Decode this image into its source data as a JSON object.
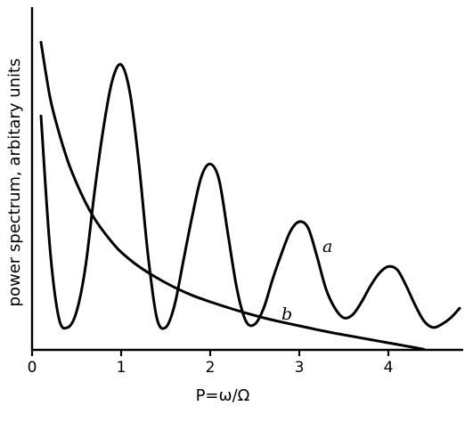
{
  "chart_data": {
    "type": "line",
    "title": "",
    "xlabel": "P=ω/Ω",
    "ylabel": "power spectrum, arbitary units",
    "xlim": [
      0,
      4.8
    ],
    "ylim": [
      0,
      10
    ],
    "xticks": [
      "0",
      "1",
      "2",
      "3",
      "4"
    ],
    "grid": false,
    "series": [
      {
        "name": "a",
        "x": [
          0.1,
          0.2,
          0.3,
          0.4,
          0.5,
          0.6,
          0.7,
          0.8,
          0.9,
          1.0,
          1.1,
          1.2,
          1.3,
          1.4,
          1.5,
          1.6,
          1.7,
          1.8,
          1.9,
          2.0,
          2.1,
          2.2,
          2.3,
          2.4,
          2.5,
          2.6,
          2.7,
          2.8,
          2.9,
          3.0,
          3.1,
          3.2,
          3.3,
          3.4,
          3.5,
          3.6,
          3.7,
          3.8,
          3.9,
          4.0,
          4.1,
          4.2,
          4.3,
          4.4,
          4.5,
          4.6,
          4.7,
          4.8
        ],
        "values": [
          7.3,
          3.2,
          1.0,
          0.7,
          1.2,
          2.6,
          4.9,
          6.9,
          8.4,
          8.9,
          8.0,
          5.8,
          3.0,
          1.0,
          0.7,
          1.4,
          2.8,
          4.2,
          5.4,
          5.8,
          5.3,
          3.6,
          1.9,
          0.9,
          0.8,
          1.3,
          2.2,
          3.0,
          3.7,
          4.0,
          3.8,
          2.9,
          1.9,
          1.3,
          1.0,
          1.1,
          1.5,
          2.0,
          2.4,
          2.6,
          2.5,
          2.0,
          1.4,
          0.9,
          0.7,
          0.8,
          1.0,
          1.3
        ]
      },
      {
        "name": "b",
        "x": [
          0.1,
          0.2,
          0.3,
          0.4,
          0.5,
          0.6,
          0.7,
          0.8,
          0.9,
          1.0,
          1.2,
          1.4,
          1.6,
          1.8,
          2.0,
          2.2,
          2.4,
          2.6,
          2.8,
          3.0,
          3.2,
          3.4,
          3.6,
          3.8,
          4.0,
          4.2,
          4.4
        ],
        "values": [
          9.6,
          7.9,
          6.8,
          5.9,
          5.2,
          4.6,
          4.1,
          3.7,
          3.35,
          3.05,
          2.6,
          2.25,
          1.95,
          1.7,
          1.5,
          1.32,
          1.15,
          1.0,
          0.87,
          0.75,
          0.63,
          0.52,
          0.42,
          0.32,
          0.22,
          0.12,
          0.02
        ]
      }
    ],
    "curve_labels": {
      "a": "a",
      "b": "b"
    }
  }
}
